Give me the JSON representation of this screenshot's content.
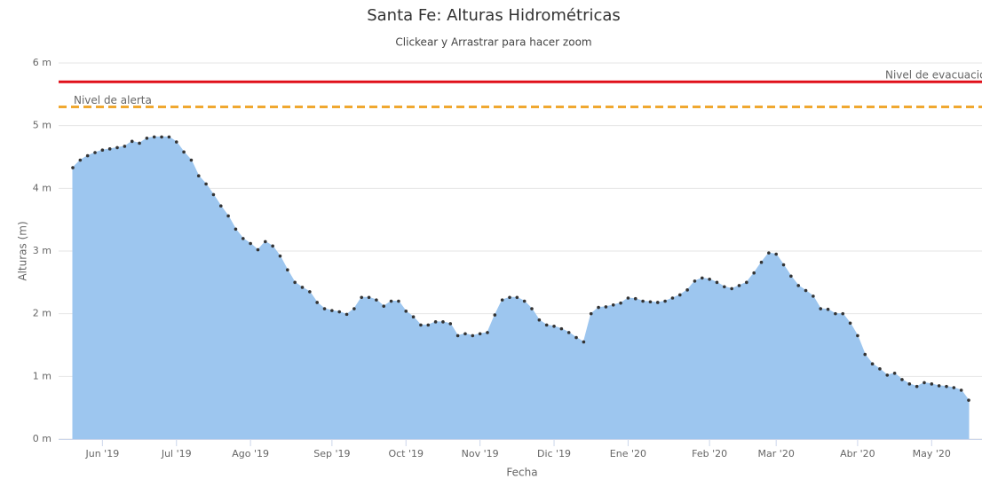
{
  "chart_data": {
    "type": "area",
    "title": "Santa Fe: Alturas Hidrométricas",
    "subtitle": "Clickear y Arrastrar para hacer zoom",
    "y_label": "Alturas (m)",
    "x_label": "Fecha",
    "categories": [
      null,
      null,
      null,
      null,
      "Jun '19",
      null,
      null,
      null,
      null,
      null,
      null,
      null,
      null,
      null,
      "Jul '19",
      null,
      null,
      null,
      null,
      null,
      null,
      null,
      null,
      null,
      "Ago '19",
      null,
      null,
      null,
      null,
      null,
      null,
      null,
      null,
      null,
      null,
      "Sep '19",
      null,
      null,
      null,
      null,
      null,
      null,
      null,
      null,
      null,
      "Oct '19",
      null,
      null,
      null,
      null,
      null,
      null,
      null,
      null,
      null,
      "Nov '19",
      null,
      null,
      null,
      null,
      null,
      null,
      null,
      null,
      null,
      "Dic '19",
      null,
      null,
      null,
      null,
      null,
      null,
      null,
      null,
      null,
      "Ene '20",
      null,
      null,
      null,
      null,
      null,
      null,
      null,
      null,
      null,
      null,
      "Feb '20",
      null,
      null,
      null,
      null,
      null,
      null,
      null,
      null,
      "Mar '20",
      null,
      null,
      null,
      null,
      null,
      null,
      null,
      null,
      null,
      null,
      "Abr '20",
      null,
      null,
      null,
      null,
      null,
      null,
      null,
      null,
      null,
      "May '20",
      null,
      null,
      null,
      null,
      null
    ],
    "values": [
      4.33,
      4.45,
      4.52,
      4.57,
      4.61,
      4.63,
      4.65,
      4.67,
      4.75,
      4.72,
      4.8,
      4.82,
      4.82,
      4.82,
      4.74,
      4.58,
      4.45,
      4.2,
      4.07,
      3.9,
      3.72,
      3.56,
      3.35,
      3.2,
      3.12,
      3.02,
      3.15,
      3.08,
      2.92,
      2.7,
      2.5,
      2.42,
      2.35,
      2.18,
      2.08,
      2.05,
      2.03,
      1.99,
      2.08,
      2.26,
      2.26,
      2.22,
      2.12,
      2.2,
      2.2,
      2.04,
      1.95,
      1.82,
      1.82,
      1.87,
      1.87,
      1.84,
      1.65,
      1.68,
      1.65,
      1.68,
      1.7,
      1.98,
      2.22,
      2.26,
      2.26,
      2.2,
      2.08,
      1.9,
      1.82,
      1.8,
      1.76,
      1.7,
      1.62,
      1.55,
      2.0,
      2.1,
      2.11,
      2.14,
      2.17,
      2.25,
      2.24,
      2.2,
      2.19,
      2.18,
      2.2,
      2.25,
      2.3,
      2.38,
      2.52,
      2.57,
      2.55,
      2.5,
      2.43,
      2.4,
      2.45,
      2.5,
      2.65,
      2.82,
      2.97,
      2.95,
      2.78,
      2.6,
      2.45,
      2.37,
      2.28,
      2.08,
      2.07,
      2.0,
      2.0,
      1.85,
      1.65,
      1.35,
      1.2,
      1.12,
      1.02,
      1.05,
      0.95,
      0.88,
      0.84,
      0.9,
      0.88,
      0.85,
      0.84,
      0.82,
      0.78,
      0.62
    ],
    "color": "#9dc6ef",
    "marker_color": "#333333",
    "ylim": [
      0,
      6
    ],
    "yticks": [
      {
        "value": 0,
        "label": "0 m"
      },
      {
        "value": 1,
        "label": "1 m"
      },
      {
        "value": 2,
        "label": "2 m"
      },
      {
        "value": 3,
        "label": "3 m"
      },
      {
        "value": 4,
        "label": "4 m"
      },
      {
        "value": 5,
        "label": "5 m"
      },
      {
        "value": 6,
        "label": "6 m"
      }
    ],
    "grid": true,
    "plot_lines": [
      {
        "label": "Nivel de evacuación",
        "value": 5.7,
        "color": "#e0101a",
        "dashed": false
      },
      {
        "label": "Nivel de alerta",
        "value": 5.3,
        "color": "#f0a830",
        "dashed": true
      }
    ]
  }
}
